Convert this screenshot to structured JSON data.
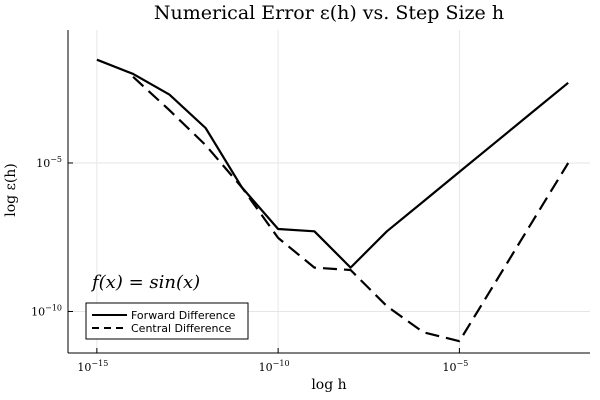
{
  "chart_data": {
    "type": "line",
    "title": "Numerical Error ε(h) vs. Step Size h",
    "xlabel": "log h",
    "ylabel": "log ε(h)",
    "xscale": "log",
    "yscale": "log",
    "xlim": [
      1.6e-16,
      0.04
    ],
    "ylim": [
      4e-12,
      0.3
    ],
    "xticks": [
      {
        "value": 1e-15,
        "base": "10",
        "exp": "−15"
      },
      {
        "value": 1e-10,
        "base": "10",
        "exp": "−10"
      },
      {
        "value": 1e-05,
        "base": "10",
        "exp": "−5"
      }
    ],
    "yticks": [
      {
        "value": 1e-05,
        "base": "10",
        "exp": "−5"
      },
      {
        "value": 1e-10,
        "base": "10",
        "exp": "−10"
      }
    ],
    "grid": true,
    "legend_position": "bottom-left",
    "annotation": "f(x) = sin(x)",
    "series": [
      {
        "name": "Forward Difference",
        "style": "solid",
        "color": "#000000",
        "x": [
          1e-15,
          1e-14,
          1e-13,
          1e-12,
          1e-11,
          1e-10,
          1e-09,
          1e-08,
          1e-07,
          1e-06,
          1e-05,
          0.0001,
          0.001,
          0.01
        ],
        "y": [
          0.03,
          0.01,
          0.002,
          0.00015,
          1.5e-06,
          6e-08,
          5e-08,
          3e-09,
          5e-08,
          5e-07,
          5e-06,
          5e-05,
          0.0005,
          0.005
        ]
      },
      {
        "name": "Central Difference",
        "style": "dashed",
        "color": "#000000",
        "x": [
          1e-14,
          1e-13,
          1e-12,
          1e-11,
          1e-10,
          1e-09,
          1e-08,
          1e-07,
          1e-06,
          1e-05,
          0.0001,
          0.001,
          0.01
        ],
        "y": [
          0.008,
          0.0006,
          4e-05,
          1.5e-06,
          3e-08,
          3e-09,
          2.5e-09,
          1.5e-10,
          2e-11,
          1e-11,
          1e-09,
          1e-07,
          1e-05
        ]
      }
    ]
  }
}
